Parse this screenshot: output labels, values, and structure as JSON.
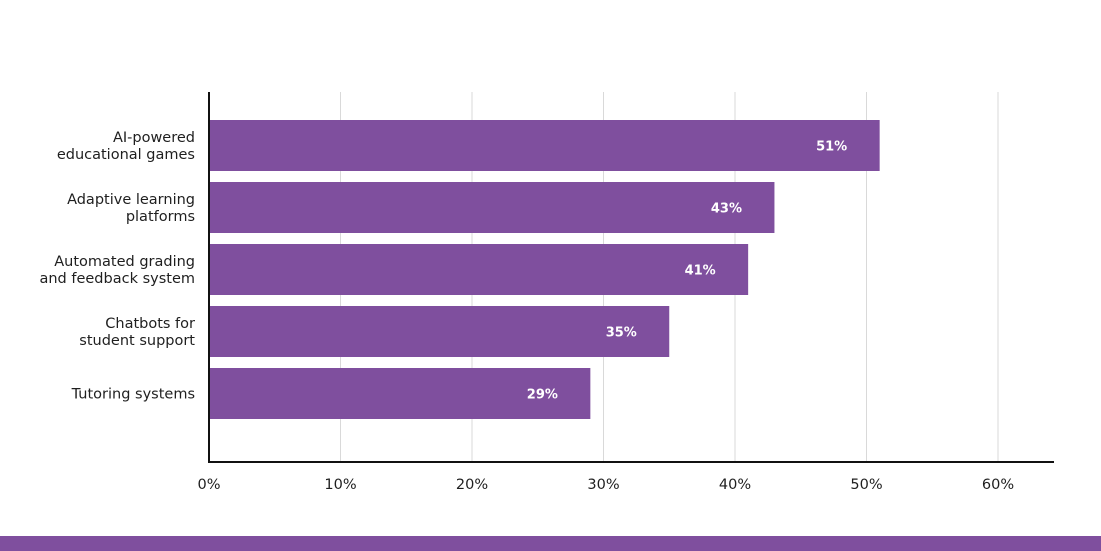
{
  "colors": {
    "bar": "#7f4f9e",
    "grid": "#d9d9d9",
    "axis": "#111111",
    "band": "#7f4f9e"
  },
  "chart_data": {
    "type": "bar",
    "orientation": "horizontal",
    "categories": [
      [
        "AI-powered",
        "educational games"
      ],
      [
        "Adaptive learning",
        "platforms"
      ],
      [
        "Automated grading",
        "and feedback system"
      ],
      [
        "Chatbots for",
        "student support"
      ],
      [
        "Tutoring systems"
      ]
    ],
    "values": [
      51,
      43,
      41,
      35,
      29
    ],
    "data_labels": [
      "51%",
      "43%",
      "41%",
      "35%",
      "29%"
    ],
    "xticks": [
      0,
      10,
      20,
      30,
      40,
      50,
      60
    ],
    "xtick_labels": [
      "0%",
      "10%",
      "20%",
      "30%",
      "40%",
      "50%",
      "60%"
    ],
    "xlim": [
      0,
      64.5
    ],
    "grid": "vertical",
    "legend": "none"
  }
}
